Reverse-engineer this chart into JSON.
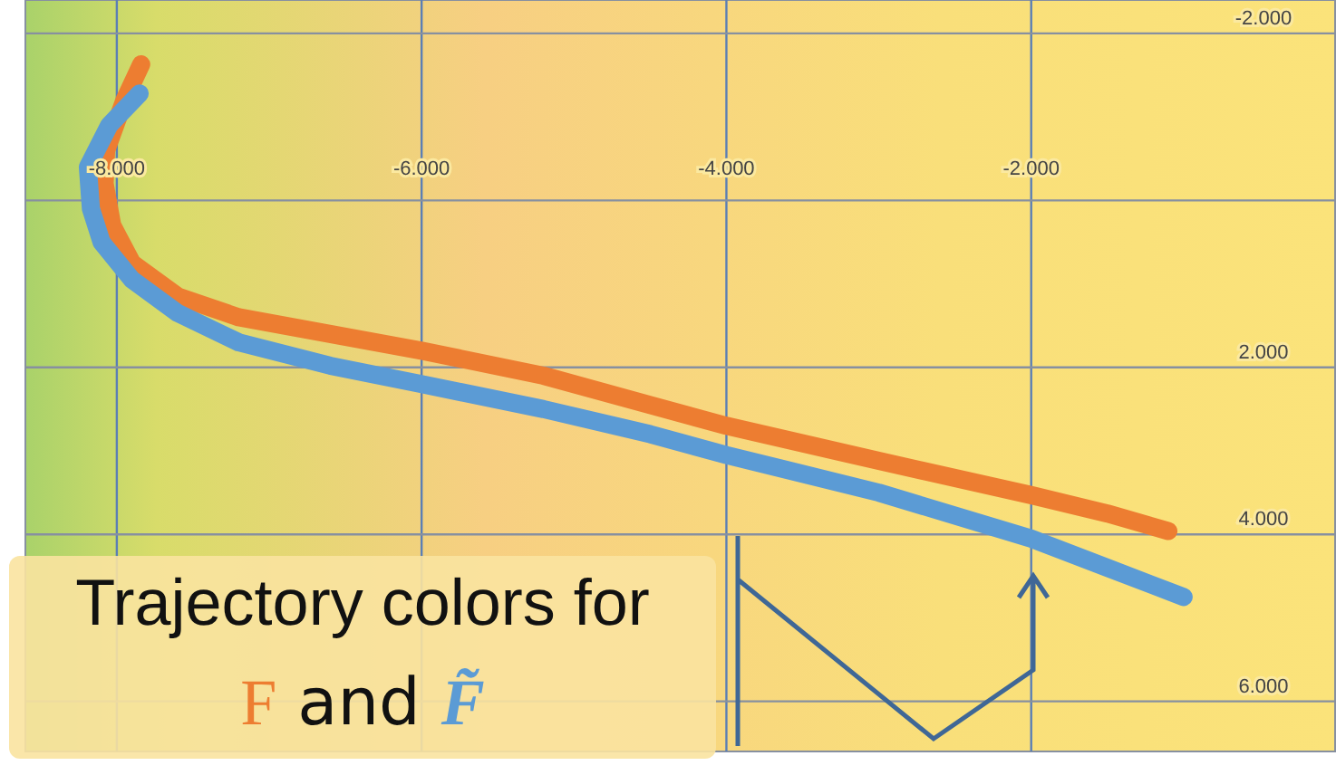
{
  "chart_data": {
    "type": "line",
    "legend_title": "Trajectory colors for",
    "annotations": [
      "and"
    ],
    "legend": "bottom left",
    "grid": true,
    "xlim": [
      -8.6,
      0
    ],
    "ylim": [
      6.6,
      -2.4
    ],
    "xticks": [
      {
        "value": -8,
        "label": "-8.000"
      },
      {
        "value": -6,
        "label": "-6.000"
      },
      {
        "value": -4,
        "label": "-4.000"
      },
      {
        "value": -2,
        "label": "-2.000"
      }
    ],
    "yticks": [
      {
        "value": -2,
        "label": "-2.000"
      },
      {
        "value": 0,
        "label": null
      },
      {
        "value": 2,
        "label": "2.000"
      },
      {
        "value": 4,
        "label": "4.000"
      },
      {
        "value": 6,
        "label": "6.000"
      }
    ],
    "series": [
      {
        "name": "F",
        "color": "#ed7d31",
        "x": [
          -7.84,
          -7.95,
          -8.07,
          -8.08,
          -8.03,
          -7.9,
          -7.6,
          -7.2,
          -6.6,
          -6.0,
          -5.2,
          -4.5,
          -4.0,
          -3.0,
          -2.0,
          -1.5,
          -1.1
        ],
        "values": [
          -1.63,
          -1.2,
          -0.6,
          -0.2,
          0.3,
          0.75,
          1.15,
          1.4,
          1.6,
          1.8,
          2.1,
          2.45,
          2.7,
          3.12,
          3.53,
          3.75,
          3.96
        ]
      },
      {
        "name": "F̃",
        "color": "#5b9bd5",
        "x": [
          -7.85,
          -8.05,
          -8.19,
          -8.17,
          -8.1,
          -7.9,
          -7.6,
          -7.2,
          -6.6,
          -6.0,
          -5.2,
          -4.5,
          -4.0,
          -3.0,
          -2.0,
          -1.5,
          -1.0
        ],
        "values": [
          -1.28,
          -0.9,
          -0.4,
          0.1,
          0.5,
          0.95,
          1.35,
          1.7,
          1.98,
          2.2,
          2.5,
          2.8,
          3.05,
          3.5,
          4.05,
          4.4,
          4.75
        ]
      }
    ]
  }
}
